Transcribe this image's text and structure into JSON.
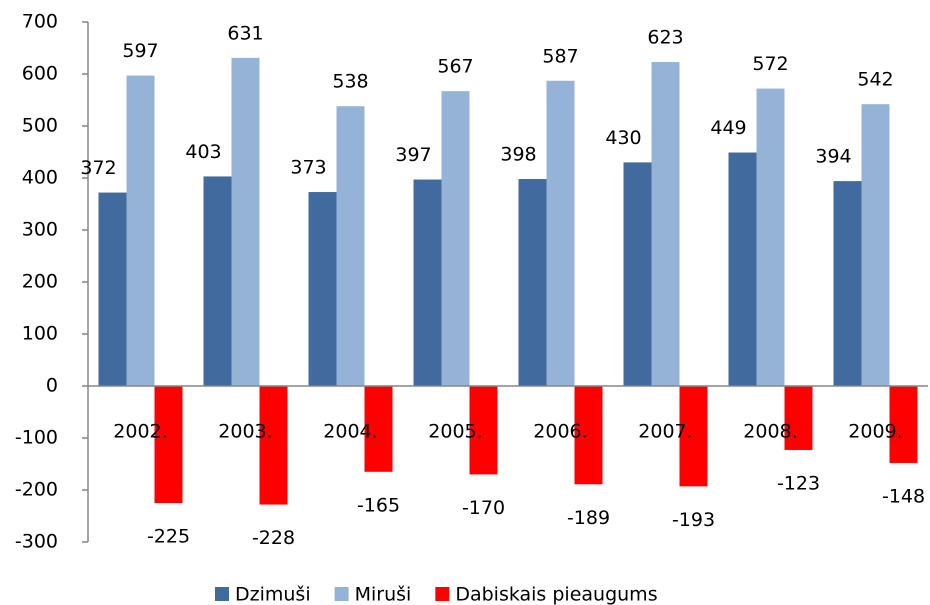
{
  "chart_data": {
    "type": "bar",
    "categories": [
      "2002.",
      "2003.",
      "2004.",
      "2005.",
      "2006.",
      "2007.",
      "2008.",
      "2009."
    ],
    "series": [
      {
        "name": "Dzimuši",
        "color": "#416a9e",
        "values": [
          372,
          403,
          373,
          397,
          398,
          430,
          449,
          394
        ]
      },
      {
        "name": "Miruši",
        "color": "#95b3d7",
        "values": [
          597,
          631,
          538,
          567,
          587,
          623,
          572,
          542
        ]
      },
      {
        "name": "Dabiskais pieaugums",
        "color": "#ff0000",
        "values": [
          -225,
          -228,
          -165,
          -170,
          -189,
          -193,
          -123,
          -148
        ]
      }
    ],
    "ylim": [
      -300,
      700
    ],
    "yticks": [
      -300,
      -200,
      -100,
      0,
      100,
      200,
      300,
      400,
      500,
      600,
      700
    ],
    "grid": false,
    "legend": "bottom"
  }
}
